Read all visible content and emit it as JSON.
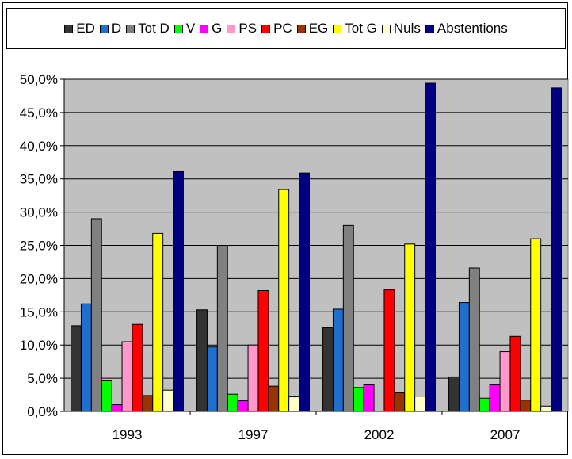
{
  "chart_data": {
    "type": "bar",
    "categories": [
      "1993",
      "1997",
      "2002",
      "2007"
    ],
    "series": [
      {
        "name": "ED",
        "color": "#333333",
        "values": [
          12.9,
          15.3,
          12.6,
          5.2
        ]
      },
      {
        "name": "D",
        "color": "#1F6FCF",
        "values": [
          16.2,
          9.7,
          15.4,
          16.4
        ]
      },
      {
        "name": "Tot D",
        "color": "#808080",
        "values": [
          29.0,
          25.0,
          28.0,
          21.6
        ]
      },
      {
        "name": "V",
        "color": "#00FF00",
        "values": [
          4.7,
          2.6,
          3.6,
          2.0
        ]
      },
      {
        "name": "G",
        "color": "#FF00FF",
        "values": [
          1.0,
          1.6,
          4.0,
          4.0
        ]
      },
      {
        "name": "PS",
        "color": "#FF99CC",
        "values": [
          10.5,
          10.0,
          0,
          9.0
        ]
      },
      {
        "name": "PC",
        "color": "#FF0000",
        "values": [
          13.1,
          18.2,
          18.3,
          11.3
        ]
      },
      {
        "name": "EG",
        "color": "#993300",
        "values": [
          2.4,
          3.8,
          2.8,
          1.7
        ]
      },
      {
        "name": "Tot G",
        "color": "#FFFF00",
        "values": [
          26.8,
          33.4,
          25.2,
          26.0
        ]
      },
      {
        "name": "Nuls",
        "color": "#FFFFCC",
        "values": [
          3.2,
          2.2,
          2.3,
          0.8
        ]
      },
      {
        "name": "Abstentions",
        "color": "#000080",
        "values": [
          36.1,
          35.9,
          49.4,
          48.7
        ]
      }
    ],
    "yticks": [
      "0,0%",
      "5,0%",
      "10,0%",
      "15,0%",
      "20,0%",
      "25,0%",
      "30,0%",
      "35,0%",
      "40,0%",
      "45,0%",
      "50,0%"
    ],
    "ylim": [
      0,
      50
    ],
    "grid": true,
    "plot_background": "#C0C0C0",
    "legend_position": "top"
  }
}
